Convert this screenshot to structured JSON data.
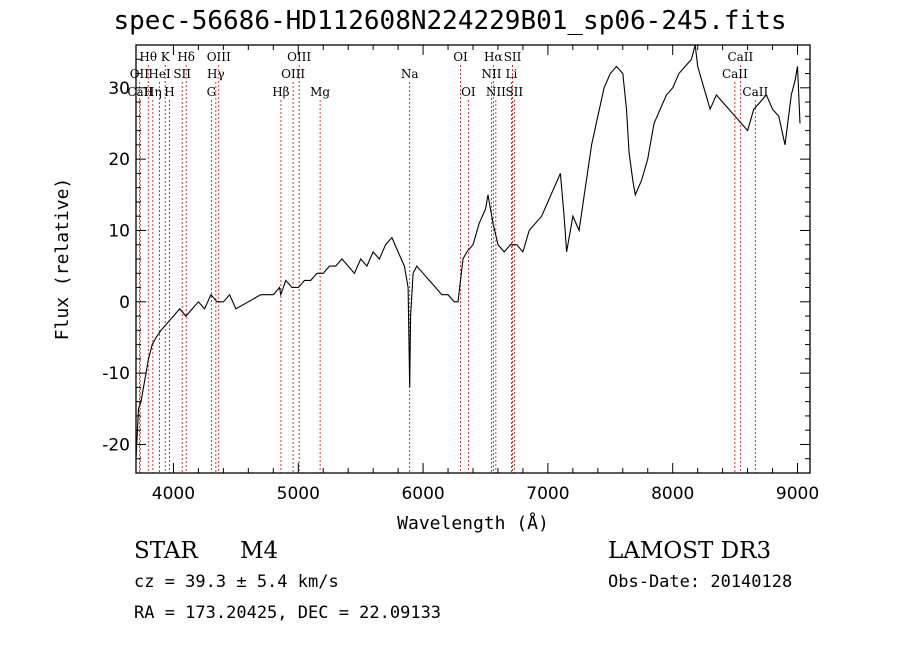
{
  "chart_data": {
    "type": "line",
    "title": "spec-56686-HD112608N224229B01_sp06-245.fits",
    "xlabel": "Wavelength (Å)",
    "ylabel": "Flux (relative)",
    "xlim": [
      3700,
      9100
    ],
    "ylim": [
      -24,
      36
    ],
    "xticks": [
      4000,
      5000,
      6000,
      7000,
      8000,
      9000
    ],
    "yticks": [
      -20,
      -10,
      0,
      10,
      20,
      30
    ],
    "grid": false,
    "series": [
      {
        "name": "spectrum",
        "x": [
          3700,
          3720,
          3740,
          3760,
          3780,
          3800,
          3830,
          3860,
          3900,
          3950,
          4000,
          4050,
          4100,
          4150,
          4200,
          4250,
          4300,
          4350,
          4400,
          4450,
          4500,
          4600,
          4700,
          4800,
          4850,
          4860,
          4880,
          4900,
          4950,
          5000,
          5050,
          5100,
          5150,
          5200,
          5250,
          5300,
          5350,
          5400,
          5450,
          5500,
          5550,
          5600,
          5650,
          5700,
          5750,
          5800,
          5850,
          5880,
          5893,
          5900,
          5920,
          5950,
          6000,
          6050,
          6100,
          6150,
          6200,
          6250,
          6280,
          6300,
          6320,
          6350,
          6400,
          6450,
          6500,
          6520,
          6560,
          6600,
          6650,
          6700,
          6750,
          6800,
          6850,
          6900,
          6950,
          7000,
          7050,
          7100,
          7130,
          7150,
          7200,
          7250,
          7300,
          7350,
          7400,
          7450,
          7500,
          7550,
          7600,
          7630,
          7650,
          7680,
          7700,
          7750,
          7800,
          7850,
          7900,
          7950,
          8000,
          8050,
          8100,
          8150,
          8180,
          8200,
          8250,
          8300,
          8350,
          8400,
          8450,
          8500,
          8550,
          8600,
          8650,
          8700,
          8750,
          8800,
          8850,
          8900,
          8950,
          8980,
          9000,
          9020
        ],
        "values": [
          -22,
          -15,
          -14,
          -12,
          -10,
          -8,
          -6,
          -5,
          -4,
          -3,
          -2,
          -1,
          -2,
          -1,
          0,
          -1,
          1,
          0,
          0,
          1,
          -1,
          0,
          1,
          1,
          2,
          1,
          2,
          3,
          2,
          2,
          3,
          3,
          4,
          4,
          5,
          5,
          6,
          5,
          4,
          6,
          5,
          7,
          6,
          8,
          9,
          7,
          5,
          2,
          -12,
          -2,
          4,
          5,
          4,
          3,
          2,
          1,
          1,
          0,
          0,
          3,
          6,
          7,
          8,
          11,
          13,
          15,
          11,
          8,
          7,
          8,
          8,
          7,
          10,
          11,
          12,
          14,
          16,
          18,
          12,
          7,
          12,
          10,
          16,
          22,
          26,
          30,
          32,
          33,
          32,
          27,
          21,
          17,
          15,
          17,
          20,
          25,
          27,
          29,
          30,
          32,
          33,
          34,
          36,
          33,
          30,
          27,
          29,
          28,
          27,
          26,
          25,
          24,
          27,
          28,
          29,
          27,
          26,
          22,
          29,
          31,
          33,
          25
        ]
      }
    ],
    "emission_lines": [
      {
        "label": "Hθ",
        "x": 3798,
        "row": 0
      },
      {
        "label": "OII",
        "x": 3727,
        "row": 1
      },
      {
        "label": "CaII",
        "x": 3734,
        "row": 2
      },
      {
        "label": "Hη",
        "x": 3835,
        "row": 2
      },
      {
        "label": "K",
        "x": 3934,
        "row": 0
      },
      {
        "label": "HeI",
        "x": 3889,
        "row": 1
      },
      {
        "label": "SII",
        "x": 4070,
        "row": 1
      },
      {
        "label": "H",
        "x": 3968,
        "row": 2
      },
      {
        "label": "Hδ",
        "x": 4102,
        "row": 0
      },
      {
        "label": "OIII",
        "x": 4363,
        "row": 0
      },
      {
        "label": "Hγ",
        "x": 4340,
        "row": 1
      },
      {
        "label": "G",
        "x": 4304,
        "row": 2
      },
      {
        "label": "Hβ",
        "x": 4861,
        "row": 2
      },
      {
        "label": "OIII",
        "x": 5007,
        "row": 0
      },
      {
        "label": "OIII",
        "x": 4959,
        "row": 1
      },
      {
        "label": "Mg",
        "x": 5175,
        "row": 2
      },
      {
        "label": "Na",
        "x": 5893,
        "row": 1
      },
      {
        "label": "OI",
        "x": 6300,
        "row": 0
      },
      {
        "label": "OI",
        "x": 6363,
        "row": 2
      },
      {
        "label": "Hα",
        "x": 6563,
        "row": 0
      },
      {
        "label": "SII",
        "x": 6717,
        "row": 0
      },
      {
        "label": "NII",
        "x": 6548,
        "row": 1
      },
      {
        "label": "Li",
        "x": 6708,
        "row": 1
      },
      {
        "label": "NII",
        "x": 6583,
        "row": 2
      },
      {
        "label": "SII",
        "x": 6731,
        "row": 2
      },
      {
        "label": "CaII",
        "x": 8542,
        "row": 0
      },
      {
        "label": "CaII",
        "x": 8498,
        "row": 1
      },
      {
        "label": "CaII",
        "x": 8662,
        "row": 2
      }
    ]
  },
  "info": {
    "object_class": "STAR",
    "subclass": "M4",
    "cz": "cz = 39.3 ± 5.4 km/s",
    "radec": "RA = 173.20425, DEC =  22.09133",
    "survey": "LAMOST DR3",
    "obs_date": "Obs-Date: 20140128"
  },
  "colors": {
    "line": "#000000",
    "marker_lines": "#cc0000",
    "axes": "#000000",
    "background": "#ffffff"
  }
}
